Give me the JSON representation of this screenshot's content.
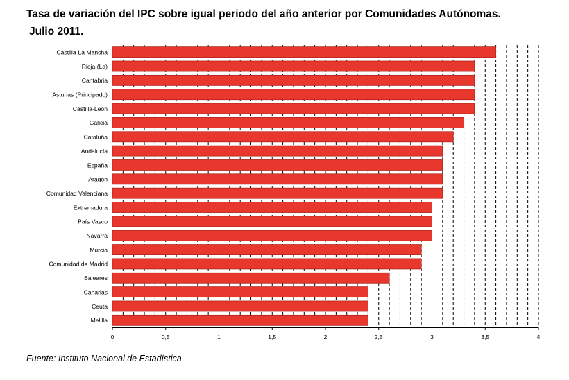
{
  "title_line1": "Tasa de variación del IPC sobre igual periodo del año anterior por Comunidades Autónomas.",
  "title_line2": "Julio 2011.",
  "source": "Fuente: Instituto Nacional de Estadística",
  "colors": {
    "bar": "#e8382d",
    "bar_edge": "#b0241b",
    "grid": "#000000"
  },
  "chart_data": {
    "type": "bar",
    "orientation": "horizontal",
    "categories": [
      "Castilla-La Mancha",
      "Rioja (La)",
      "Cantabria",
      "Asturias (Principado)",
      "Castilla-León",
      "Galicia",
      "Cataluña",
      "Andalucía",
      "España",
      "Aragón",
      "Comunidad Valenciana",
      "Extremadura",
      "País Vasco",
      "Navarra",
      "Murcia",
      "Comunidad de Madrid",
      "Baleares",
      "Canarias",
      "Ceuta",
      "Melilla"
    ],
    "values": [
      3.6,
      3.4,
      3.4,
      3.4,
      3.4,
      3.3,
      3.2,
      3.1,
      3.1,
      3.1,
      3.1,
      3.0,
      3.0,
      3.0,
      2.9,
      2.9,
      2.6,
      2.4,
      2.4,
      2.4
    ],
    "xlim": [
      0,
      4
    ],
    "x_ticks": [
      0,
      0.5,
      1,
      1.5,
      2,
      2.5,
      3,
      3.5,
      4
    ],
    "x_tick_labels": [
      "0",
      "0,5",
      "1",
      "1,5",
      "2",
      "2,5",
      "3",
      "3,5",
      "4"
    ],
    "grid": "vertical dashed, every 0.1",
    "legend": "none"
  }
}
